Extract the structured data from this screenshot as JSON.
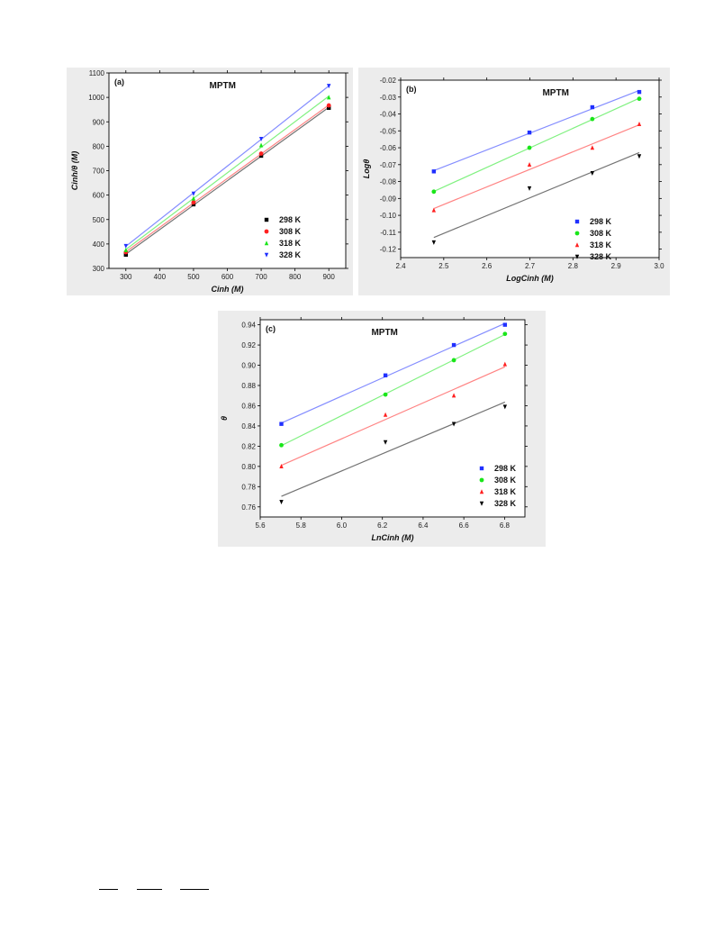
{
  "chart_data": [
    {
      "type": "scatter",
      "panel_label": "(a)",
      "title": "MPTM",
      "xlabel": "Cinh (M)",
      "ylabel": "Cinh/θ (M)",
      "xlim": [
        250,
        950
      ],
      "ylim": [
        300,
        1100
      ],
      "xticks": [
        300,
        400,
        500,
        600,
        700,
        800,
        900
      ],
      "yticks": [
        300,
        400,
        500,
        600,
        700,
        800,
        900,
        1000,
        1100
      ],
      "fit_lines": true,
      "legend_position": "bottom-right",
      "x": [
        300,
        500,
        700,
        900
      ],
      "series": [
        {
          "name": "298 K",
          "color": "#000000",
          "marker": "square",
          "values": [
            356,
            562,
            761,
            957
          ]
        },
        {
          "name": "308 K",
          "color": "#ff2020",
          "marker": "circle",
          "values": [
            366,
            570,
            770,
            967
          ]
        },
        {
          "name": "318 K",
          "color": "#19e619",
          "marker": "triangle-up",
          "values": [
            375,
            586,
            804,
            1000
          ]
        },
        {
          "name": "328 K",
          "color": "#2030ff",
          "marker": "triangle-down",
          "values": [
            392,
            606,
            830,
            1047
          ]
        }
      ]
    },
    {
      "type": "scatter",
      "panel_label": "(b)",
      "title": "MPTM",
      "xlabel": "LogCinh (M)",
      "ylabel": "Logθ",
      "xlim": [
        2.4,
        3.0
      ],
      "ylim": [
        -0.125,
        -0.02
      ],
      "xticks": [
        2.4,
        2.5,
        2.6,
        2.7,
        2.8,
        2.9,
        3.0
      ],
      "yticks": [
        -0.02,
        -0.03,
        -0.04,
        -0.05,
        -0.06,
        -0.07,
        -0.08,
        -0.09,
        -0.1,
        -0.11,
        -0.12
      ],
      "ytick_labels": [
        "-0.02",
        "-0.03",
        "-0.04",
        "-0.05",
        "-0.06",
        "-0.07",
        "-0.08",
        "-0.09",
        "-0.10",
        "-0.11",
        "-0.12"
      ],
      "xtick_labels": [
        "2.4",
        "2.5",
        "2.6",
        "2.7",
        "2.8",
        "2.9",
        "3.0"
      ],
      "fit_lines": true,
      "legend_position": "bottom-right",
      "x": [
        2.477,
        2.699,
        2.845,
        2.954
      ],
      "series": [
        {
          "name": "298 K",
          "color": "#2030ff",
          "marker": "square",
          "values": [
            -0.074,
            -0.051,
            -0.036,
            -0.027
          ]
        },
        {
          "name": "308 K",
          "color": "#19e619",
          "marker": "circle",
          "values": [
            -0.086,
            -0.06,
            -0.043,
            -0.031
          ]
        },
        {
          "name": "318 K",
          "color": "#ff2020",
          "marker": "triangle-up",
          "values": [
            -0.097,
            -0.07,
            -0.06,
            -0.046
          ]
        },
        {
          "name": "328 K",
          "color": "#000000",
          "marker": "triangle-down",
          "values": [
            -0.116,
            -0.084,
            -0.075,
            -0.065
          ]
        }
      ]
    },
    {
      "type": "scatter",
      "panel_label": "(c)",
      "title": "MPTM",
      "xlabel": "LnCinh (M)",
      "ylabel": "θ",
      "xlim": [
        5.6,
        6.9
      ],
      "ylim": [
        0.75,
        0.945
      ],
      "xticks": [
        5.6,
        5.8,
        6.0,
        6.2,
        6.4,
        6.6,
        6.8
      ],
      "xtick_labels": [
        "5.6",
        "5.8",
        "6.0",
        "6.2",
        "6.4",
        "6.6",
        "6.8"
      ],
      "yticks": [
        0.76,
        0.78,
        0.8,
        0.82,
        0.84,
        0.86,
        0.88,
        0.9,
        0.92,
        0.94
      ],
      "ytick_labels": [
        "0.76",
        "0.78",
        "0.80",
        "0.82",
        "0.84",
        "0.86",
        "0.88",
        "0.90",
        "0.92",
        "0.94"
      ],
      "fit_lines": true,
      "legend_position": "bottom-right",
      "x": [
        5.704,
        6.215,
        6.551,
        6.802
      ],
      "series": [
        {
          "name": "298 K",
          "color": "#2030ff",
          "marker": "square",
          "values": [
            0.842,
            0.89,
            0.92,
            0.94
          ]
        },
        {
          "name": "308 K",
          "color": "#19e619",
          "marker": "circle",
          "values": [
            0.821,
            0.871,
            0.905,
            0.931
          ]
        },
        {
          "name": "318 K",
          "color": "#ff2020",
          "marker": "triangle-up",
          "values": [
            0.8,
            0.851,
            0.87,
            0.901
          ]
        },
        {
          "name": "328 K",
          "color": "#000000",
          "marker": "triangle-down",
          "values": [
            0.765,
            0.824,
            0.842,
            0.859
          ]
        }
      ]
    }
  ]
}
